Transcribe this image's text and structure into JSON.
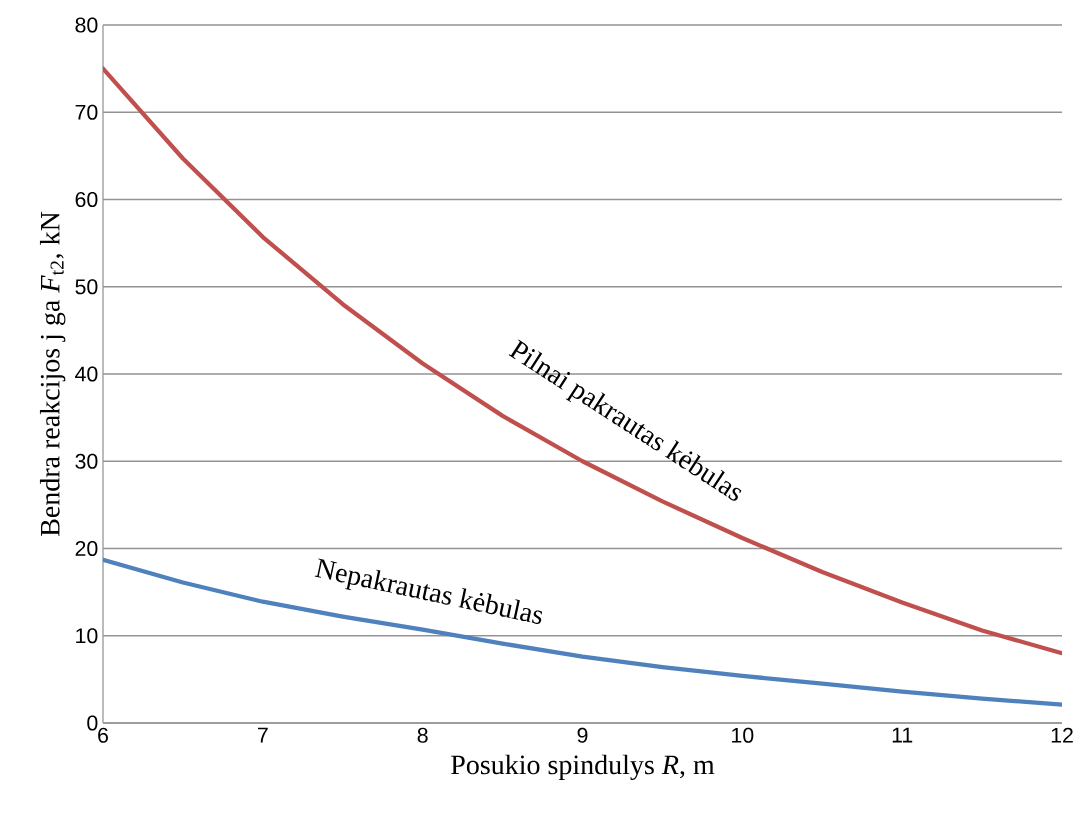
{
  "chart_data": {
    "type": "line",
    "xlabel": "Posukio spindulys *R*, m",
    "ylabel": "Bendra reakcijos j ga *F*$_{t2}$, kN",
    "x": [
      6,
      6.5,
      7,
      7.5,
      8,
      8.5,
      9,
      9.5,
      10,
      10.5,
      11,
      11.5,
      12
    ],
    "series": [
      {
        "name": "Pilnai pakrautas kėbulas",
        "color": "#c0504d",
        "values": [
          75,
          64.7,
          55.7,
          48,
          41.2,
          35.2,
          30,
          25.4,
          21.2,
          17.3,
          13.8,
          10.6,
          8
        ]
      },
      {
        "name": "Nepakrautas kėbulas",
        "color": "#4f81bd",
        "values": [
          18.7,
          16.1,
          13.9,
          12.2,
          10.7,
          9.1,
          7.6,
          6.4,
          5.4,
          4.5,
          3.6,
          2.8,
          2.1
        ]
      }
    ],
    "xlim": [
      6,
      12
    ],
    "xticks": [
      6,
      7,
      8,
      9,
      10,
      11,
      12
    ],
    "ylim": [
      0,
      80
    ],
    "yticks": [
      0,
      10,
      20,
      30,
      40,
      50,
      60,
      70,
      80
    ],
    "grid": "y"
  }
}
